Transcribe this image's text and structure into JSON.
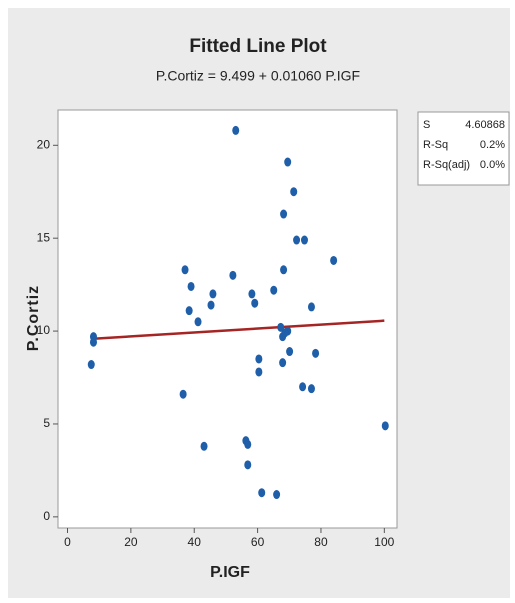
{
  "chart_data": {
    "type": "scatter",
    "title": "Fitted Line Plot",
    "subtitle": "P.Cortiz = 9.499 + 0.01060 P.IGF",
    "x_label": "P.IGF",
    "y_label": "P.Cortiz",
    "xlim": [
      -3,
      104
    ],
    "ylim": [
      -0.6,
      21.9
    ],
    "xticks": [
      0,
      20,
      40,
      60,
      80,
      100
    ],
    "yticks": [
      0,
      5,
      10,
      15,
      20
    ],
    "series": [
      {
        "color": "#1f5ea8",
        "x": [
          7.5,
          8.2,
          8.2,
          36.5,
          37.1,
          38.4,
          39,
          41.2,
          43.1,
          45.3,
          45.9,
          52.2,
          53.1,
          56.3,
          56.9,
          56.9,
          58.2,
          59.1,
          60.4,
          60.4,
          61.3,
          65.1,
          66,
          67.3,
          67.9,
          67.9,
          69.5,
          71.4,
          68.2,
          72.3,
          74.8,
          68.2,
          70.1,
          74.2,
          77,
          78.3,
          77,
          84,
          100.3,
          69.5,
          68.6
        ],
        "values": [
          8.2,
          9.7,
          9.4,
          6.6,
          13.3,
          11.1,
          12.4,
          10.5,
          3.8,
          11.4,
          12,
          13,
          20.8,
          4.1,
          3.9,
          2.8,
          12,
          11.5,
          8.5,
          7.8,
          1.3,
          12.2,
          1.2,
          10.2,
          8.3,
          9.7,
          19.1,
          17.5,
          16.3,
          14.9,
          14.9,
          13.3,
          8.9,
          7,
          6.9,
          8.8,
          11.3,
          13.8,
          4.9,
          10,
          9.9
        ]
      }
    ],
    "fit_line": {
      "color": "#a52424",
      "x": [
        7.5,
        100
      ],
      "values": [
        9.58,
        10.56
      ]
    },
    "stats": [
      {
        "label": "S",
        "value": "4.60868"
      },
      {
        "label": "R-Sq",
        "value": "0.2%"
      },
      {
        "label": "R-Sq(adj)",
        "value": "0.0%"
      }
    ]
  }
}
